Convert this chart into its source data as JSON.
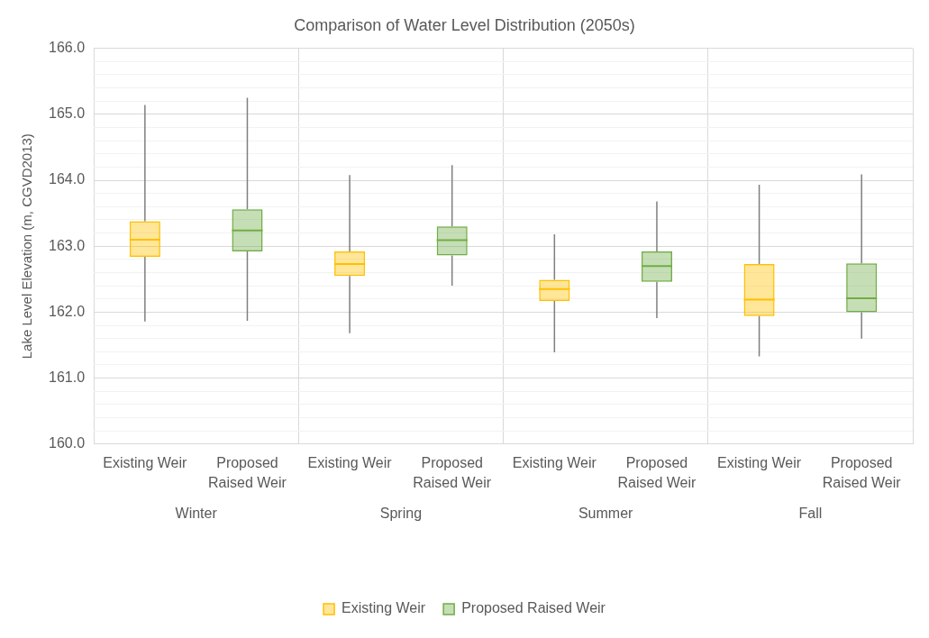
{
  "chart_data": {
    "type": "box",
    "title": "Comparison of Water Level Distribution (2050s)",
    "ylabel": "Lake Level Elevation (m, CGVD2013)",
    "categories": [
      "Winter",
      "Spring",
      "Summer",
      "Fall"
    ],
    "series": [
      {
        "name": "Existing Weir",
        "color": "#ffc000",
        "boxes": [
          {
            "low": 161.86,
            "q1": 162.84,
            "median": 163.1,
            "q3": 163.38,
            "high": 165.14
          },
          {
            "low": 161.68,
            "q1": 162.55,
            "median": 162.73,
            "q3": 162.92,
            "high": 164.08
          },
          {
            "low": 161.39,
            "q1": 162.17,
            "median": 162.35,
            "q3": 162.49,
            "high": 163.18
          },
          {
            "low": 161.33,
            "q1": 161.94,
            "median": 162.19,
            "q3": 162.73,
            "high": 163.93
          }
        ]
      },
      {
        "name": "Proposed Raised Weir",
        "color": "#70ad47",
        "boxes": [
          {
            "low": 161.87,
            "q1": 162.92,
            "median": 163.24,
            "q3": 163.56,
            "high": 165.25
          },
          {
            "low": 162.4,
            "q1": 162.86,
            "median": 163.09,
            "q3": 163.3,
            "high": 164.23
          },
          {
            "low": 161.91,
            "q1": 162.46,
            "median": 162.7,
            "q3": 162.92,
            "high": 163.68
          },
          {
            "low": 161.6,
            "q1": 162.0,
            "median": 162.21,
            "q3": 162.74,
            "high": 164.09
          }
        ]
      }
    ],
    "ylim": [
      160,
      166
    ],
    "yticks": [
      {
        "value": 160,
        "label": "160.0"
      },
      {
        "value": 160.2,
        "label": null
      },
      {
        "value": 160.4,
        "label": null
      },
      {
        "value": 160.6,
        "label": null
      },
      {
        "value": 160.8,
        "label": null
      },
      {
        "value": 161,
        "label": "161.0"
      },
      {
        "value": 161.2,
        "label": null
      },
      {
        "value": 161.4,
        "label": null
      },
      {
        "value": 161.6,
        "label": null
      },
      {
        "value": 161.8,
        "label": null
      },
      {
        "value": 162,
        "label": "162.0"
      },
      {
        "value": 162.2,
        "label": null
      },
      {
        "value": 162.4,
        "label": null
      },
      {
        "value": 162.6,
        "label": null
      },
      {
        "value": 162.8,
        "label": null
      },
      {
        "value": 163,
        "label": "163.0"
      },
      {
        "value": 163.2,
        "label": null
      },
      {
        "value": 163.4,
        "label": null
      },
      {
        "value": 163.6,
        "label": null
      },
      {
        "value": 163.8,
        "label": null
      },
      {
        "value": 164,
        "label": "164.0"
      },
      {
        "value": 164.2,
        "label": null
      },
      {
        "value": 164.4,
        "label": null
      },
      {
        "value": 164.6,
        "label": null
      },
      {
        "value": 164.8,
        "label": null
      },
      {
        "value": 165,
        "label": "165.0"
      },
      {
        "value": 165.2,
        "label": null
      },
      {
        "value": 165.4,
        "label": null
      },
      {
        "value": 165.6,
        "label": null
      },
      {
        "value": 165.8,
        "label": null
      },
      {
        "value": 166,
        "label": "166.0"
      }
    ],
    "grid": true,
    "legend": "bottom"
  }
}
